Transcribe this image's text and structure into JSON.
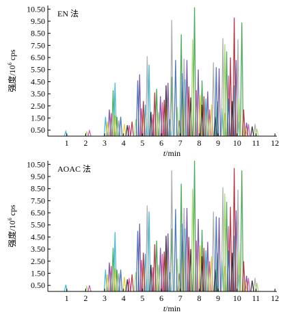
{
  "chart_data": [
    {
      "type": "line",
      "title": "EN 法",
      "xlabel": {
        "symbol": "t",
        "unit": "/min"
      },
      "ylabel": {
        "prefix": "强度/10",
        "exp": "6",
        "unit": " cps"
      },
      "x_ticks": [
        "1",
        "2",
        "3",
        "4",
        "5",
        "6",
        "7",
        "8",
        "9",
        "10",
        "11",
        "12"
      ],
      "y_ticks": [
        "0.50",
        "1.50",
        "2.50",
        "3.50",
        "4.50",
        "5.50",
        "6.50",
        "7.50",
        "8.50",
        "9.50",
        "10.50"
      ],
      "xlim": [
        0,
        12.1
      ],
      "ylim": [
        0,
        10.8
      ],
      "series": [
        {
          "color": "#1fb0d4",
          "values": [
            [
              0.95,
              0.4
            ],
            [
              3.05,
              1.6
            ],
            [
              3.55,
              4.4
            ],
            [
              5.15,
              2.6
            ],
            [
              5.35,
              5.9
            ],
            [
              6.45,
              1.4
            ],
            [
              7.25,
              4.7
            ],
            [
              8.35,
              3.1
            ],
            [
              9.2,
              2.3
            ],
            [
              9.85,
              4.2
            ],
            [
              10.1,
              1.2
            ]
          ]
        },
        {
          "color": "#d63ea1",
          "values": [
            [
              2.2,
              0.45
            ],
            [
              3.35,
              1.9
            ],
            [
              4.3,
              0.9
            ],
            [
              4.95,
              2.3
            ],
            [
              5.55,
              1.8
            ],
            [
              6.05,
              2.8
            ],
            [
              6.95,
              1.3
            ],
            [
              7.85,
              3.8
            ],
            [
              8.55,
              2.2
            ],
            [
              9.55,
              5.0
            ],
            [
              10.6,
              1.0
            ]
          ]
        },
        {
          "color": "#2e9d3c",
          "values": [
            [
              3.45,
              3.8
            ],
            [
              3.65,
              1.6
            ],
            [
              5.75,
              3.9
            ],
            [
              6.55,
              4.9
            ],
            [
              7.05,
              8.4
            ],
            [
              7.75,
              10.65
            ],
            [
              8.15,
              4.6
            ],
            [
              8.95,
              2.9
            ],
            [
              9.45,
              7.0
            ],
            [
              10.25,
              9.4
            ]
          ]
        },
        {
          "color": "#6a3f9e",
          "values": [
            [
              3.25,
              2.2
            ],
            [
              4.85,
              5.1
            ],
            [
              5.95,
              3.3
            ],
            [
              6.35,
              4.4
            ],
            [
              7.35,
              6.3
            ],
            [
              7.95,
              5.5
            ],
            [
              8.45,
              3.7
            ],
            [
              9.05,
              5.6
            ],
            [
              9.95,
              6.3
            ],
            [
              10.5,
              1.1
            ]
          ]
        },
        {
          "color": "#e3c81b",
          "values": [
            [
              3.15,
              1.2
            ],
            [
              3.55,
              1.7
            ],
            [
              4.05,
              1.0
            ],
            [
              5.05,
              1.8
            ],
            [
              6.25,
              2.6
            ],
            [
              7.15,
              3.7
            ],
            [
              8.05,
              3.4
            ],
            [
              8.65,
              2.6
            ],
            [
              9.35,
              1.9
            ],
            [
              10.45,
              0.7
            ]
          ]
        },
        {
          "color": "#b01b2a",
          "values": [
            [
              4.45,
              1.2
            ],
            [
              5.05,
              2.9
            ],
            [
              5.65,
              3.6
            ],
            [
              6.15,
              3.0
            ],
            [
              7.45,
              4.1
            ],
            [
              8.25,
              3.3
            ],
            [
              9.65,
              6.5
            ],
            [
              9.85,
              9.8
            ],
            [
              10.35,
              2.2
            ]
          ]
        },
        {
          "color": "#9ea1a6",
          "values": [
            [
              3.75,
              1.3
            ],
            [
              5.25,
              6.6
            ],
            [
              6.55,
              9.6
            ],
            [
              7.2,
              6.4
            ],
            [
              8.75,
              6.1
            ],
            [
              9.25,
              8.1
            ],
            [
              10.05,
              8.0
            ],
            [
              10.95,
              1.0
            ]
          ]
        },
        {
          "color": "#1c1c1c",
          "values": [
            [
              4.2,
              0.9
            ],
            [
              5.45,
              2.0
            ],
            [
              6.25,
              4.2
            ],
            [
              7.55,
              3.2
            ],
            [
              8.15,
              2.6
            ],
            [
              8.85,
              1.6
            ],
            [
              9.75,
              2.9
            ],
            [
              10.8,
              0.8
            ]
          ]
        },
        {
          "color": "#9bd35a",
          "values": [
            [
              2.05,
              0.35
            ],
            [
              4.65,
              1.4
            ],
            [
              5.85,
              2.0
            ],
            [
              6.85,
              2.4
            ],
            [
              7.65,
              8.0
            ],
            [
              8.45,
              2.1
            ],
            [
              9.35,
              7.6
            ],
            [
              10.1,
              3.1
            ],
            [
              11.05,
              0.6
            ]
          ]
        },
        {
          "color": "#2f63b5",
          "values": [
            [
              3.85,
              1.6
            ],
            [
              4.75,
              4.6
            ],
            [
              6.75,
              6.3
            ],
            [
              7.1,
              5.2
            ],
            [
              8.9,
              5.7
            ],
            [
              9.55,
              3.1
            ]
          ]
        }
      ]
    },
    {
      "type": "line",
      "title": "AOAC 法",
      "xlabel": {
        "symbol": "t",
        "unit": "/min"
      },
      "ylabel": {
        "prefix": "强度/10",
        "exp": "6",
        "unit": " cps"
      },
      "x_ticks": [
        "1",
        "2",
        "3",
        "4",
        "5",
        "6",
        "7",
        "8",
        "9",
        "10",
        "11",
        "12"
      ],
      "y_ticks": [
        "0.50",
        "1.50",
        "2.50",
        "3.50",
        "4.50",
        "5.50",
        "6.50",
        "7.50",
        "8.50",
        "9.50",
        "10.50"
      ],
      "xlim": [
        0,
        12.1
      ],
      "ylim": [
        0,
        10.8
      ],
      "series": [
        {
          "color": "#1fb0d4",
          "values": [
            [
              0.95,
              0.55
            ],
            [
              3.05,
              1.8
            ],
            [
              3.55,
              4.9
            ],
            [
              5.15,
              3.1
            ],
            [
              5.35,
              6.6
            ],
            [
              6.45,
              1.6
            ],
            [
              7.25,
              5.2
            ],
            [
              8.35,
              3.4
            ],
            [
              9.2,
              2.6
            ],
            [
              9.85,
              4.6
            ],
            [
              10.1,
              1.4
            ]
          ]
        },
        {
          "color": "#d63ea1",
          "values": [
            [
              2.2,
              0.5
            ],
            [
              3.35,
              2.1
            ],
            [
              4.3,
              1.1
            ],
            [
              4.95,
              2.6
            ],
            [
              5.55,
              2.0
            ],
            [
              6.05,
              3.1
            ],
            [
              6.95,
              1.5
            ],
            [
              7.85,
              4.2
            ],
            [
              8.55,
              2.5
            ],
            [
              9.55,
              5.4
            ],
            [
              10.6,
              1.1
            ]
          ]
        },
        {
          "color": "#2e9d3c",
          "values": [
            [
              3.45,
              3.6
            ],
            [
              3.65,
              1.8
            ],
            [
              5.75,
              4.2
            ],
            [
              6.55,
              5.2
            ],
            [
              7.05,
              8.9
            ],
            [
              7.75,
              10.8
            ],
            [
              8.15,
              5.1
            ],
            [
              8.95,
              3.2
            ],
            [
              9.45,
              7.4
            ],
            [
              10.25,
              10.0
            ]
          ]
        },
        {
          "color": "#6a3f9e",
          "values": [
            [
              3.25,
              2.4
            ],
            [
              4.85,
              5.6
            ],
            [
              5.95,
              3.6
            ],
            [
              6.35,
              4.8
            ],
            [
              7.35,
              6.9
            ],
            [
              7.95,
              6.0
            ],
            [
              8.45,
              4.1
            ],
            [
              9.05,
              6.1
            ],
            [
              9.95,
              6.7
            ],
            [
              10.5,
              1.3
            ]
          ]
        },
        {
          "color": "#e3c81b",
          "values": [
            [
              3.15,
              1.4
            ],
            [
              3.55,
              1.9
            ],
            [
              4.05,
              1.2
            ],
            [
              5.05,
              2.0
            ],
            [
              6.25,
              2.9
            ],
            [
              7.15,
              4.1
            ],
            [
              8.05,
              3.8
            ],
            [
              8.65,
              2.9
            ],
            [
              9.35,
              2.1
            ],
            [
              10.45,
              0.8
            ]
          ]
        },
        {
          "color": "#b01b2a",
          "values": [
            [
              4.45,
              1.4
            ],
            [
              5.05,
              3.2
            ],
            [
              5.65,
              3.9
            ],
            [
              6.15,
              3.3
            ],
            [
              7.45,
              4.5
            ],
            [
              8.25,
              3.6
            ],
            [
              9.65,
              7.0
            ],
            [
              9.85,
              10.2
            ],
            [
              10.35,
              2.5
            ]
          ]
        },
        {
          "color": "#9ea1a6",
          "values": [
            [
              3.75,
              1.5
            ],
            [
              5.25,
              7.1
            ],
            [
              6.55,
              10.0
            ],
            [
              7.2,
              6.9
            ],
            [
              8.75,
              6.6
            ],
            [
              9.25,
              8.6
            ],
            [
              10.05,
              8.4
            ],
            [
              10.95,
              1.1
            ]
          ]
        },
        {
          "color": "#1c1c1c",
          "values": [
            [
              4.2,
              1.0
            ],
            [
              5.45,
              2.2
            ],
            [
              6.25,
              4.6
            ],
            [
              7.55,
              3.5
            ],
            [
              8.15,
              2.9
            ],
            [
              8.85,
              1.8
            ],
            [
              9.75,
              3.2
            ],
            [
              10.8,
              0.9
            ]
          ]
        },
        {
          "color": "#9bd35a",
          "values": [
            [
              2.05,
              0.4
            ],
            [
              4.65,
              1.6
            ],
            [
              5.85,
              2.2
            ],
            [
              6.85,
              2.7
            ],
            [
              7.65,
              8.5
            ],
            [
              8.45,
              2.3
            ],
            [
              9.35,
              8.1
            ],
            [
              10.1,
              3.4
            ],
            [
              11.05,
              0.7
            ]
          ]
        },
        {
          "color": "#2f63b5",
          "values": [
            [
              3.85,
              1.8
            ],
            [
              4.75,
              5.0
            ],
            [
              6.75,
              6.8
            ],
            [
              7.1,
              5.6
            ],
            [
              8.9,
              6.2
            ],
            [
              9.55,
              3.4
            ]
          ]
        }
      ]
    }
  ]
}
